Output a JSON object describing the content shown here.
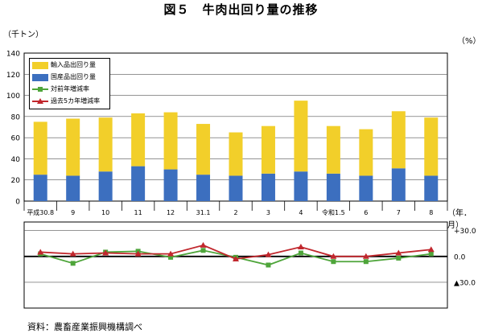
{
  "page": {
    "title": "図５　牛肉出回り量の推移",
    "left_unit": "（千トン）",
    "right_unit": "（%）",
    "x_unit": "（年．月）",
    "source": "資料：農畜産業振興機構調べ"
  },
  "chart_data": [
    {
      "type": "bar",
      "stacked": true,
      "categories": [
        "平成30.8",
        "9",
        "10",
        "11",
        "12",
        "31.1",
        "2",
        "3",
        "4",
        "令和1.5",
        "6",
        "7",
        "8"
      ],
      "series": [
        {
          "name": "国産品出回り量",
          "color": "#3c6fbf",
          "values": [
            25,
            24,
            28,
            33,
            30,
            25,
            24,
            26,
            28,
            26,
            24,
            31,
            24
          ]
        },
        {
          "name": "輸入品出回り量",
          "color": "#f2cf2a",
          "values": [
            50,
            54,
            51,
            50,
            54,
            48,
            41,
            45,
            67,
            45,
            44,
            54,
            55
          ]
        }
      ],
      "ylim": [
        0,
        140
      ],
      "yticks": [
        0,
        20,
        40,
        60,
        80,
        100,
        120,
        140
      ],
      "grid": true
    },
    {
      "type": "line",
      "categories": [
        "平成30.8",
        "9",
        "10",
        "11",
        "12",
        "31.1",
        "2",
        "3",
        "4",
        "令和1.5",
        "6",
        "7",
        "8"
      ],
      "series": [
        {
          "name": "対前年増減率",
          "color": "#4ea53a",
          "marker": "square",
          "values": [
            3,
            -8,
            5,
            6,
            -1,
            7,
            -1,
            -10,
            4,
            -6,
            -6,
            -2,
            3
          ]
        },
        {
          "name": "過去5カ年増減率",
          "color": "#c1272d",
          "marker": "triangle",
          "values": [
            5,
            3,
            4,
            3,
            3,
            13,
            -3,
            2,
            11,
            0,
            0,
            4,
            8
          ]
        }
      ],
      "ylim": [
        -60,
        40
      ],
      "ytick_labels": [
        "+30.0",
        "0.0",
        "▲30.0"
      ],
      "ytick_values": [
        30,
        0,
        -30
      ],
      "grid": true
    }
  ]
}
